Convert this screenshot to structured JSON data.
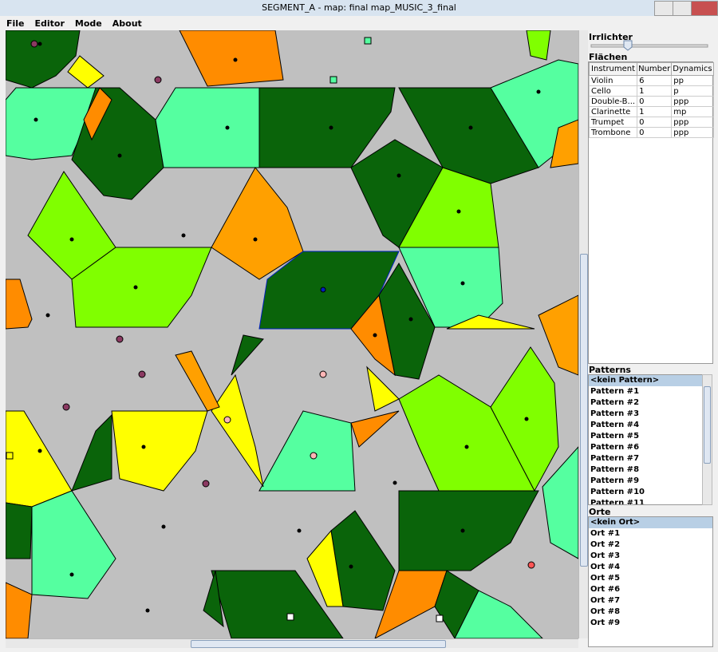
{
  "window": {
    "title": "SEGMENT_A - map: final map_MUSIC_3_final"
  },
  "menu": [
    "File",
    "Editor",
    "Mode",
    "About"
  ],
  "sidebar": {
    "irrlichter_label": "Irrlichter",
    "flaechen_label": "Flächen",
    "table": {
      "columns": [
        "Instrument",
        "Number",
        "Dynamics"
      ],
      "rows": [
        [
          "Violin",
          6,
          "pp"
        ],
        [
          "Cello",
          1,
          "p"
        ],
        [
          "Double-B...",
          0,
          "ppp"
        ],
        [
          "Clarinette",
          1,
          "mp"
        ],
        [
          "Trumpet",
          0,
          "ppp"
        ],
        [
          "Trombone",
          0,
          "ppp"
        ]
      ]
    },
    "patterns_label": "Patterns",
    "patterns": [
      "<kein Pattern>",
      "Pattern #1",
      "Pattern #2",
      "Pattern #3",
      "Pattern #4",
      "Pattern #5",
      "Pattern #6",
      "Pattern #7",
      "Pattern #8",
      "Pattern #9",
      "Pattern #10",
      "Pattern #11"
    ],
    "orte_label": "Orte",
    "orte": [
      "<kein Ort>",
      "Ort #1",
      "Ort #2",
      "Ort #3",
      "Ort #4",
      "Ort #5",
      "Ort #6",
      "Ort #7",
      "Ort #8",
      "Ort #9"
    ]
  }
}
